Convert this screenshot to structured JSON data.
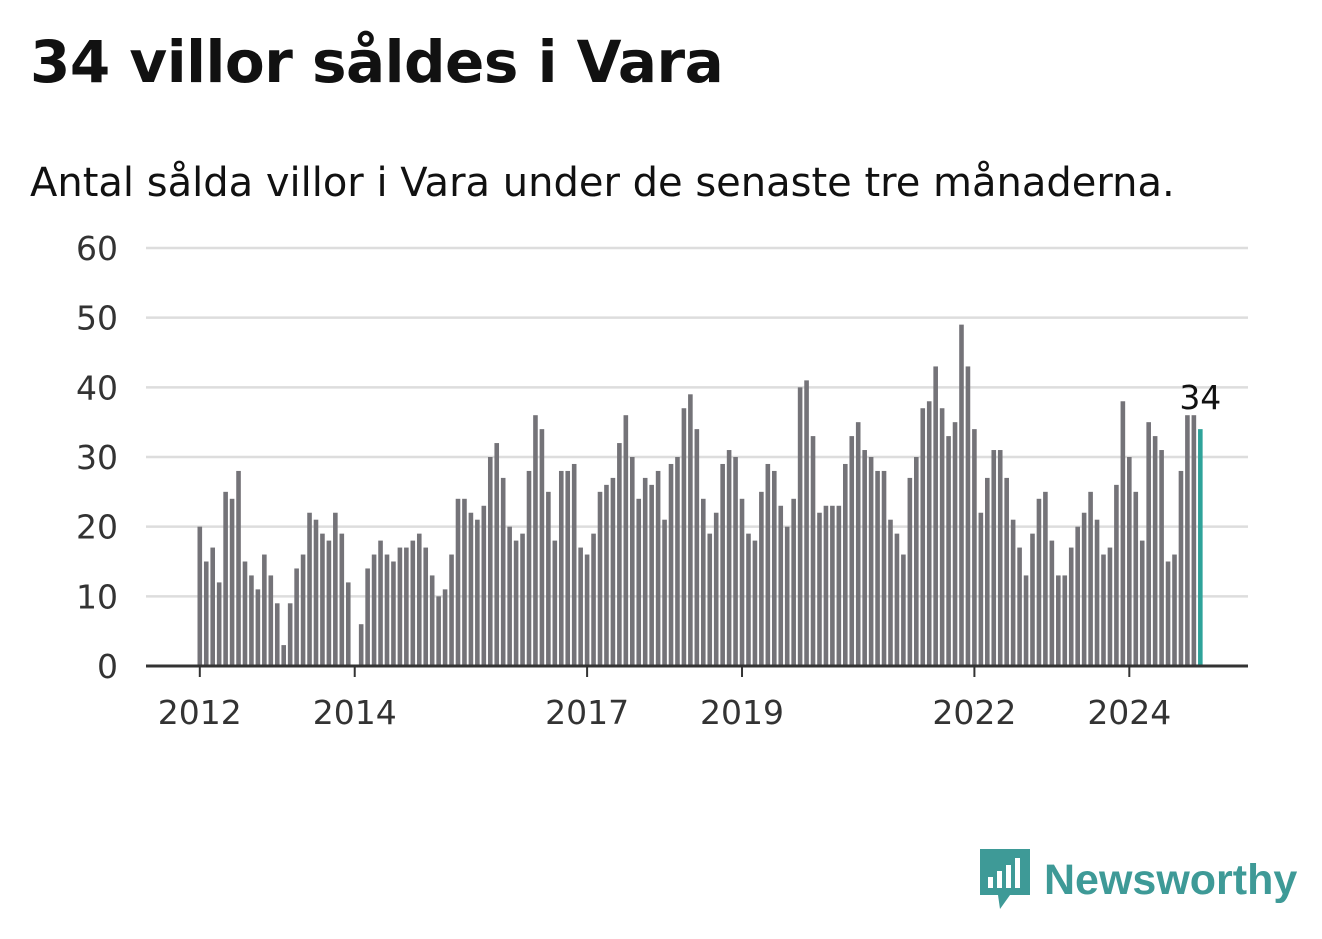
{
  "title": "34 villor såldes i Vara",
  "subtitle": "Antal sålda villor i Vara under de senaste tre månaderna.",
  "brand": {
    "name": "Newsworthy",
    "icon": "newsworthy-logo-icon",
    "color": "#3e9a97"
  },
  "colors": {
    "bar": "#747378",
    "highlight": "#2fa39a",
    "grid": "#dddddd",
    "axis": "#333333",
    "text": "#333333"
  },
  "chart_data": {
    "type": "bar",
    "title": "34 villor såldes i Vara",
    "subtitle": "Antal sålda villor i Vara under de senaste tre månaderna.",
    "xlabel": "",
    "ylabel": "",
    "ylim": [
      0,
      60
    ],
    "yticks": [
      0,
      10,
      20,
      30,
      40,
      50,
      60
    ],
    "xticks": [
      "2012",
      "2014",
      "2017",
      "2019",
      "2022",
      "2024"
    ],
    "grid": true,
    "start": "2012-01",
    "frequency": "monthly",
    "values": [
      20,
      15,
      17,
      12,
      25,
      24,
      28,
      15,
      13,
      11,
      16,
      13,
      9,
      3,
      9,
      14,
      16,
      22,
      21,
      19,
      18,
      22,
      19,
      12,
      0,
      6,
      14,
      16,
      18,
      16,
      15,
      17,
      17,
      18,
      19,
      17,
      13,
      10,
      11,
      16,
      24,
      24,
      22,
      21,
      23,
      30,
      32,
      27,
      20,
      18,
      19,
      28,
      36,
      34,
      25,
      18,
      28,
      28,
      29,
      17,
      16,
      19,
      25,
      26,
      27,
      32,
      36,
      30,
      24,
      27,
      26,
      28,
      21,
      29,
      30,
      37,
      39,
      34,
      24,
      19,
      22,
      29,
      31,
      30,
      24,
      19,
      18,
      25,
      29,
      28,
      23,
      20,
      24,
      40,
      41,
      33,
      22,
      23,
      23,
      23,
      29,
      33,
      35,
      31,
      30,
      28,
      28,
      21,
      19,
      16,
      27,
      30,
      37,
      38,
      43,
      37,
      33,
      35,
      49,
      43,
      34,
      22,
      27,
      31,
      31,
      27,
      21,
      17,
      13,
      19,
      24,
      25,
      18,
      13,
      13,
      17,
      20,
      22,
      25,
      21,
      16,
      17,
      26,
      38,
      30,
      25,
      18,
      35,
      33,
      31,
      15,
      16,
      28,
      36,
      36,
      34
    ],
    "highlight_last": true,
    "annotation": "34"
  }
}
